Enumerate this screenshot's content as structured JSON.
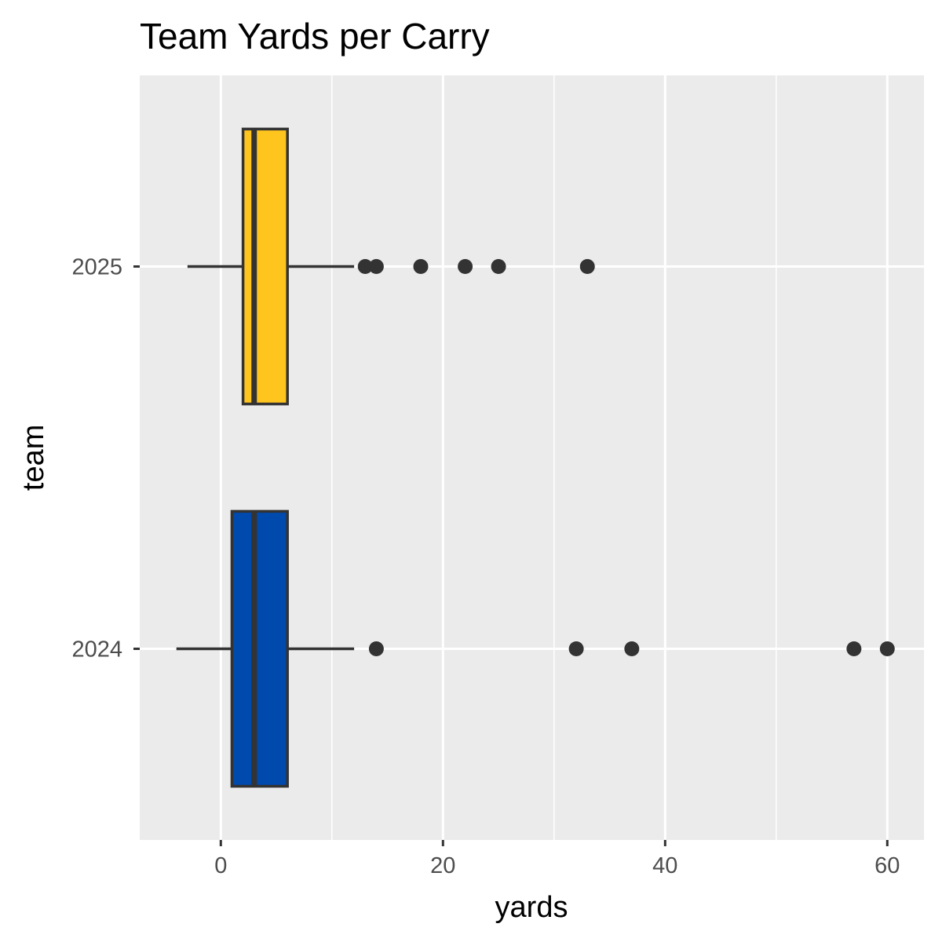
{
  "chart_data": {
    "type": "boxplot",
    "orientation": "horizontal",
    "title": "Team Yards per Carry",
    "xlabel": "yards",
    "ylabel": "team",
    "xlim": [
      -7.3,
      63.3
    ],
    "x_major_ticks": [
      0,
      20,
      40,
      60
    ],
    "x_tick_labels": [
      "0",
      "20",
      "40",
      "60"
    ],
    "x_minor_gridlines": [
      10,
      30,
      50
    ],
    "grid": true,
    "legend": "none",
    "background_color": "#ebebeb",
    "series": [
      {
        "name": "2025",
        "color": "#ffc51f",
        "whisker_low": -3,
        "q1": 2,
        "median": 3,
        "q3": 6,
        "whisker_high": 12,
        "outliers": [
          13,
          14,
          18,
          22,
          25,
          33
        ]
      },
      {
        "name": "2024",
        "color": "#004aad",
        "whisker_low": -4,
        "q1": 1,
        "median": 3,
        "q3": 6,
        "whisker_high": 12,
        "outliers": [
          14,
          32,
          37,
          57,
          60
        ]
      }
    ]
  }
}
